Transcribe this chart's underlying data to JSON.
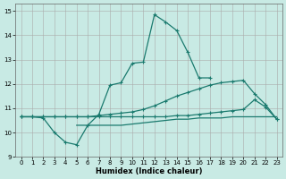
{
  "xlabel": "Humidex (Indice chaleur)",
  "background_color": "#c8eae4",
  "grid_color": "#b0b0b0",
  "line_color": "#1a7a6e",
  "xlim": [
    -0.5,
    23.5
  ],
  "ylim": [
    9,
    15.3
  ],
  "xticks": [
    0,
    1,
    2,
    3,
    4,
    5,
    6,
    7,
    8,
    9,
    10,
    11,
    12,
    13,
    14,
    15,
    16,
    17,
    18,
    19,
    20,
    21,
    22,
    23
  ],
  "yticks": [
    9,
    10,
    11,
    12,
    13,
    14,
    15
  ],
  "line1_x": [
    0,
    1,
    2,
    3,
    4,
    5,
    6,
    7,
    8,
    9,
    10,
    11,
    12,
    13,
    14,
    15,
    16,
    17
  ],
  "line1_y": [
    10.65,
    10.65,
    10.6,
    10.0,
    9.6,
    9.5,
    10.3,
    10.75,
    11.95,
    12.05,
    12.85,
    12.9,
    14.85,
    14.55,
    14.2,
    13.3,
    12.25,
    12.25
  ],
  "line2_x": [
    0,
    1,
    2,
    3,
    4,
    5,
    6,
    7,
    8,
    9,
    10,
    11,
    12,
    13,
    14,
    15,
    16,
    17,
    18,
    19,
    20,
    21,
    22,
    23
  ],
  "line2_y": [
    10.65,
    10.65,
    10.65,
    10.65,
    10.65,
    10.65,
    10.65,
    10.7,
    10.75,
    10.8,
    10.85,
    10.95,
    11.1,
    11.3,
    11.5,
    11.65,
    11.8,
    11.95,
    12.05,
    12.1,
    12.15,
    11.6,
    11.15,
    10.55
  ],
  "line3_x": [
    0,
    1,
    2,
    3,
    4,
    5,
    6,
    7,
    8,
    9,
    10,
    11,
    12,
    13,
    14,
    15,
    16,
    17,
    18,
    19,
    20,
    21,
    22,
    23
  ],
  "line3_y": [
    10.65,
    10.65,
    10.65,
    10.65,
    10.65,
    10.65,
    10.65,
    10.65,
    10.65,
    10.65,
    10.65,
    10.65,
    10.65,
    10.65,
    10.7,
    10.7,
    10.75,
    10.8,
    10.85,
    10.9,
    10.95,
    11.35,
    11.05,
    10.55
  ],
  "line4_x": [
    5,
    6,
    7,
    8,
    9,
    10,
    11,
    12,
    13,
    14,
    15,
    16,
    17,
    18,
    19,
    20,
    21,
    22,
    23
  ],
  "line4_y": [
    10.3,
    10.3,
    10.3,
    10.3,
    10.3,
    10.35,
    10.4,
    10.45,
    10.5,
    10.55,
    10.55,
    10.6,
    10.6,
    10.6,
    10.65,
    10.65,
    10.65,
    10.65,
    10.65
  ]
}
